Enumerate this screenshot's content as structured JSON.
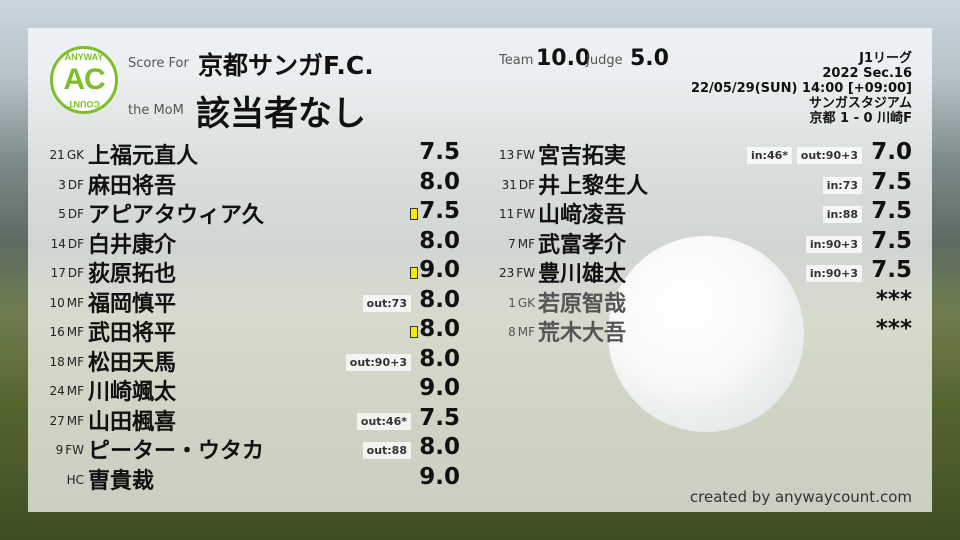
{
  "header": {
    "score_for_label": "Score For",
    "team_name": "京都サンガF.C.",
    "mom_label": "the MoM",
    "mom_name": "該当者なし",
    "team_label": "Team",
    "team_score": "10.0",
    "judge_label": "Judge",
    "judge_score": "5.0"
  },
  "logo": {
    "top_text": "ANYWAY",
    "mark": "AC",
    "bottom_text": "COUNT"
  },
  "match": {
    "league": "J1リーグ",
    "section": "2022 Sec.16",
    "datetime": "22/05/29(SUN) 14:00 [+09:00]",
    "stadium": "サンガスタジアム",
    "result": "京都 1 - 0 川崎F"
  },
  "left_players": [
    {
      "num": "21",
      "pos": "GK",
      "name": "上福元直人",
      "score": "7.5",
      "tags": [],
      "yellow": false
    },
    {
      "num": "3",
      "pos": "DF",
      "name": "麻田将吾",
      "score": "8.0",
      "tags": [],
      "yellow": false
    },
    {
      "num": "5",
      "pos": "DF",
      "name": "アピアタウィア久",
      "score": "7.5",
      "tags": [],
      "yellow": true
    },
    {
      "num": "14",
      "pos": "DF",
      "name": "白井康介",
      "score": "8.0",
      "tags": [],
      "yellow": false
    },
    {
      "num": "17",
      "pos": "DF",
      "name": "荻原拓也",
      "score": "9.0",
      "tags": [],
      "yellow": true
    },
    {
      "num": "10",
      "pos": "MF",
      "name": "福岡慎平",
      "score": "8.0",
      "tags": [
        "out:73"
      ],
      "yellow": false
    },
    {
      "num": "16",
      "pos": "MF",
      "name": "武田将平",
      "score": "8.0",
      "tags": [],
      "yellow": true
    },
    {
      "num": "18",
      "pos": "MF",
      "name": "松田天馬",
      "score": "8.0",
      "tags": [
        "out:90+3"
      ],
      "yellow": false
    },
    {
      "num": "24",
      "pos": "MF",
      "name": "川崎颯太",
      "score": "9.0",
      "tags": [],
      "yellow": false
    },
    {
      "num": "27",
      "pos": "MF",
      "name": "山田楓喜",
      "score": "7.5",
      "tags": [
        "out:46*"
      ],
      "yellow": false
    },
    {
      "num": "9",
      "pos": "FW",
      "name": "ピーター・ウタカ",
      "score": "8.0",
      "tags": [
        "out:88"
      ],
      "yellow": false
    },
    {
      "num": "",
      "pos": "HC",
      "name": "曺貴裁",
      "score": "9.0",
      "tags": [],
      "yellow": false
    }
  ],
  "right_players": [
    {
      "num": "13",
      "pos": "FW",
      "name": "宮吉拓実",
      "score": "7.0",
      "tags": [
        "in:46*",
        "out:90+3"
      ],
      "yellow": false
    },
    {
      "num": "31",
      "pos": "DF",
      "name": "井上黎生人",
      "score": "7.5",
      "tags": [
        "in:73"
      ],
      "yellow": false
    },
    {
      "num": "11",
      "pos": "FW",
      "name": "山﨑凌吾",
      "score": "7.5",
      "tags": [
        "in:88"
      ],
      "yellow": false
    },
    {
      "num": "7",
      "pos": "MF",
      "name": "武富孝介",
      "score": "7.5",
      "tags": [
        "in:90+3"
      ],
      "yellow": false
    },
    {
      "num": "23",
      "pos": "FW",
      "name": "豊川雄太",
      "score": "7.5",
      "tags": [
        "in:90+3"
      ],
      "yellow": false
    },
    {
      "num": "1",
      "pos": "GK",
      "name": "若原智哉",
      "score": "***",
      "tags": [],
      "yellow": false,
      "unused": true
    },
    {
      "num": "8",
      "pos": "MF",
      "name": "荒木大吾",
      "score": "***",
      "tags": [],
      "yellow": false,
      "unused": true
    }
  ],
  "footer": {
    "credit": "created by anywaycount.com"
  },
  "colors": {
    "logo_green": "#7cbf2a",
    "yellow_card": "#f5ea00"
  }
}
